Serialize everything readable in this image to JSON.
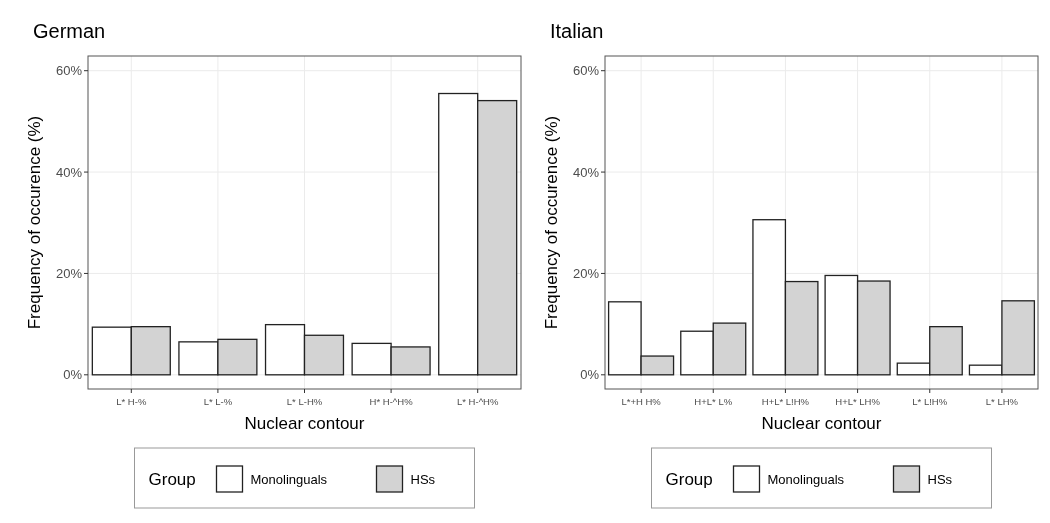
{
  "chart_data": [
    {
      "type": "bar",
      "title": "German",
      "xlabel": "Nuclear contour",
      "ylabel": "Frequency of occurence (%)",
      "legend_title": "Group",
      "legend": "bottom",
      "grid": true,
      "categories": [
        "L* H-%",
        "L* L-%",
        "L* L-H%",
        "H* H-^H%",
        "L* H-^H%"
      ],
      "series": [
        {
          "name": "Monolinguals",
          "color": "#ffffff",
          "values": [
            9.4,
            6.5,
            9.9,
            6.2,
            55.5
          ]
        },
        {
          "name": "HSs",
          "color": "#d3d3d3",
          "values": [
            9.5,
            7.0,
            7.8,
            5.5,
            54.1
          ]
        }
      ],
      "ylim": [
        -2.8,
        62.9
      ],
      "yticks": [
        {
          "value": 0,
          "label": "0%"
        },
        {
          "value": 20,
          "label": "20%"
        },
        {
          "value": 40,
          "label": "40%"
        },
        {
          "value": 60,
          "label": "60%"
        }
      ]
    },
    {
      "type": "bar",
      "title": "Italian",
      "xlabel": "Nuclear contour",
      "ylabel": "Frequency of occurence (%)",
      "legend_title": "Group",
      "legend": "bottom",
      "grid": true,
      "categories": [
        "L*+H H%",
        "H+L* L%",
        "H+L* L!H%",
        "H+L* LH%",
        "L* L!H%",
        "L* LH%"
      ],
      "series": [
        {
          "name": "Monolinguals",
          "color": "#ffffff",
          "values": [
            14.4,
            8.6,
            30.6,
            19.6,
            2.3,
            1.9
          ]
        },
        {
          "name": "HSs",
          "color": "#d3d3d3",
          "values": [
            3.7,
            10.2,
            18.4,
            18.5,
            9.5,
            14.6
          ]
        }
      ],
      "ylim": [
        -2.8,
        62.9
      ],
      "yticks": [
        {
          "value": 0,
          "label": "0%"
        },
        {
          "value": 20,
          "label": "20%"
        },
        {
          "value": 40,
          "label": "40%"
        },
        {
          "value": 60,
          "label": "60%"
        }
      ]
    }
  ]
}
